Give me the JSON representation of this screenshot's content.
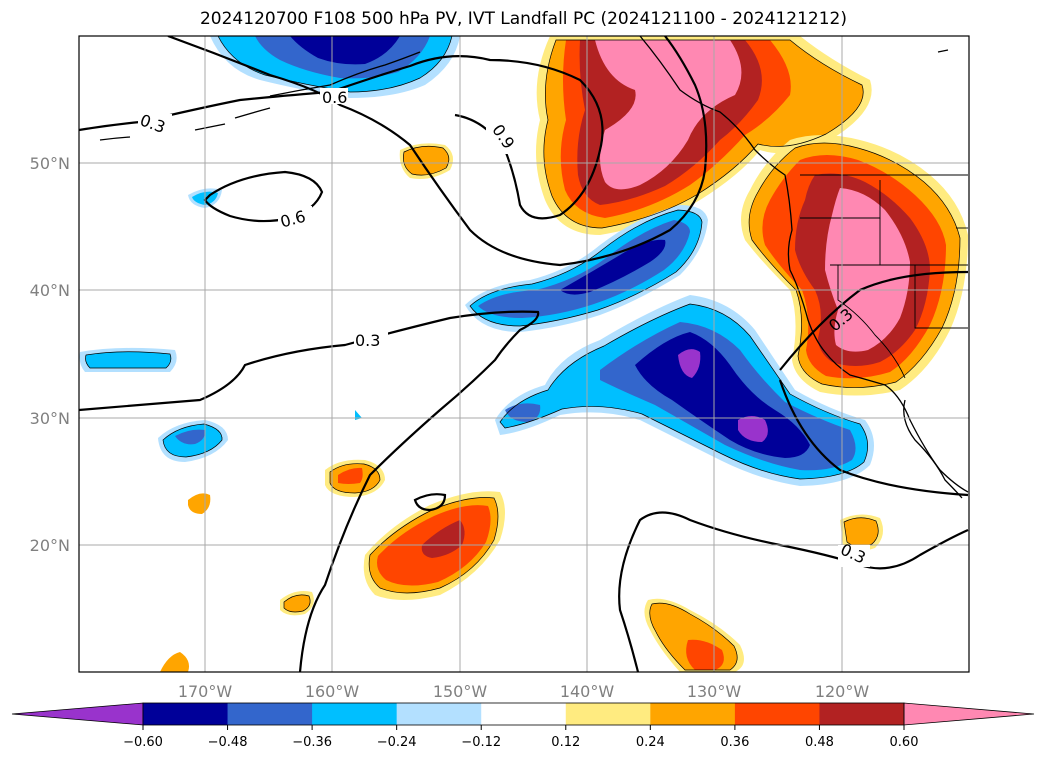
{
  "title": "2024120700 F108 500 hPa PV, IVT Landfall PC (2024121100 - 2024121212)",
  "lat_labels": [
    "50°N",
    "40°N",
    "30°N",
    "20°N"
  ],
  "lon_labels": [
    "170°W",
    "160°W",
    "150°W",
    "140°W",
    "130°W",
    "120°W"
  ],
  "contour_labels": [
    "0.3",
    "0.6",
    "0.9",
    "0.6",
    "0.3",
    "0.3",
    "0.3"
  ],
  "colorbar": {
    "colors": [
      "#9933cc",
      "#000099",
      "#3366cc",
      "#00bfff",
      "#b3e0ff",
      "#ffffff",
      "#ffeb80",
      "#ffa500",
      "#ff4500",
      "#b22222",
      "#ff88b2"
    ],
    "ticks": [
      "−0.60",
      "−0.48",
      "−0.36",
      "−0.24",
      "−0.12",
      "0.12",
      "0.24",
      "0.36",
      "0.48",
      "0.60"
    ]
  }
}
